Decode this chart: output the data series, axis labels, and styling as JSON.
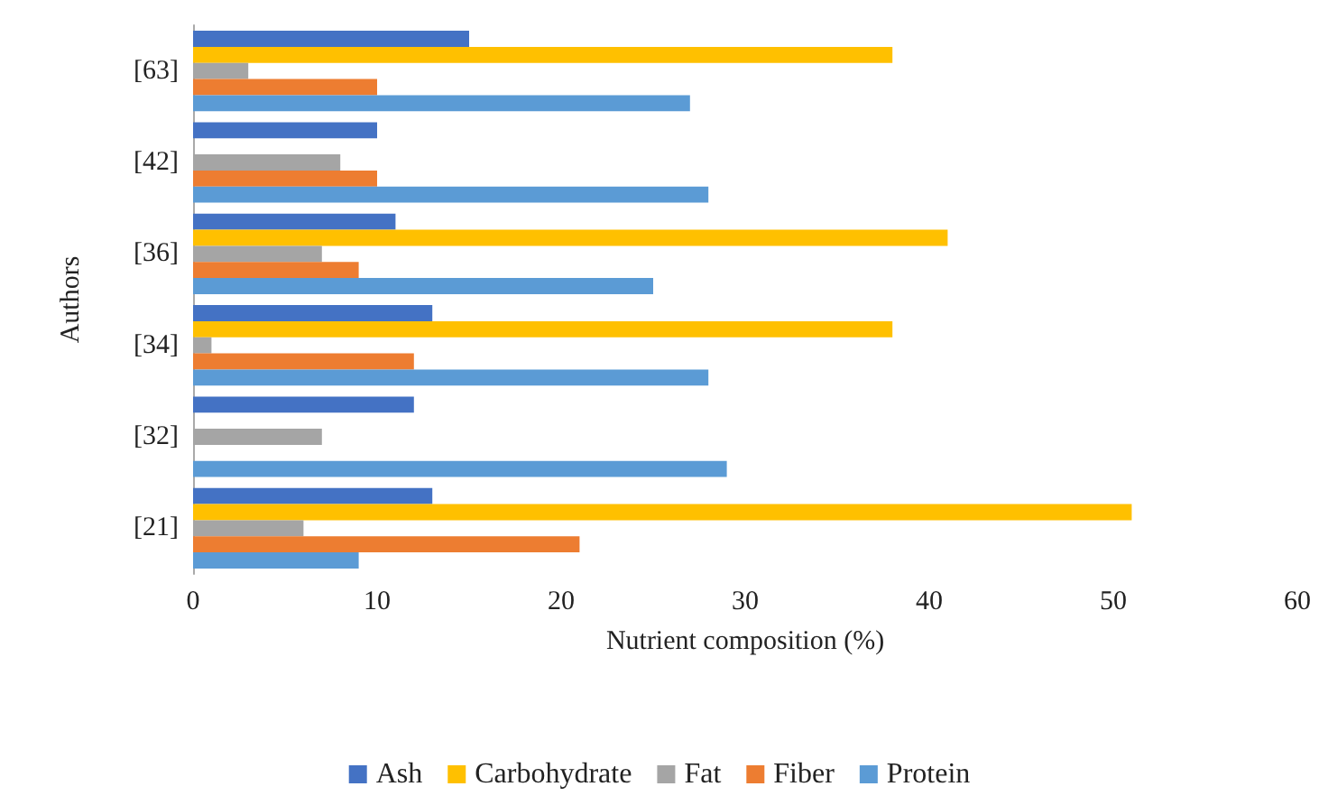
{
  "chart_data": {
    "type": "bar",
    "orientation": "horizontal",
    "xlabel": "Nutrient composition (%)",
    "ylabel": "Authors",
    "categories": [
      "[63]",
      "[42]",
      "[36]",
      "[34]",
      "[32]",
      "[21]"
    ],
    "series": [
      {
        "name": "Ash",
        "color": "#4472c4",
        "values": [
          15,
          10,
          11,
          13,
          12,
          13
        ]
      },
      {
        "name": "Carbohydrate",
        "color": "#ffc000",
        "values": [
          38,
          null,
          41,
          38,
          null,
          51
        ]
      },
      {
        "name": "Fat",
        "color": "#a5a5a5",
        "values": [
          3,
          8,
          7,
          1,
          7,
          6
        ]
      },
      {
        "name": "Fiber",
        "color": "#ed7d31",
        "values": [
          10,
          10,
          9,
          12,
          null,
          21
        ]
      },
      {
        "name": "Protein",
        "color": "#5b9bd5",
        "values": [
          27,
          28,
          25,
          28,
          29,
          9
        ]
      }
    ],
    "xlim": [
      0,
      60
    ],
    "xticks": [
      0,
      10,
      20,
      30,
      40,
      50,
      60
    ],
    "grid": false,
    "legend": "bottom"
  }
}
